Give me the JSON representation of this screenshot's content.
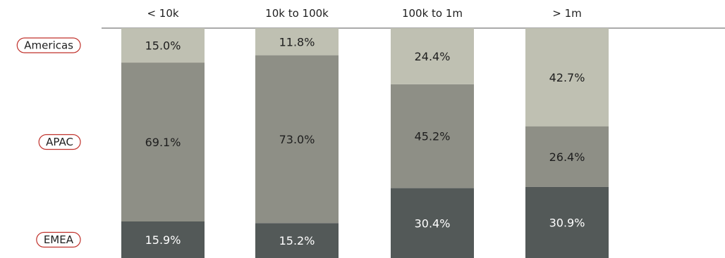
{
  "chart_data": {
    "type": "bar",
    "stacked": true,
    "percent": true,
    "categories": [
      "< 10k",
      "10k to 100k",
      "100k to 1m",
      "> 1m"
    ],
    "series": [
      {
        "name": "EMEA",
        "values": [
          15.9,
          15.2,
          30.4,
          30.9
        ],
        "labels": [
          "15.9%",
          "15.2%",
          "30.4%",
          "30.9%"
        ],
        "color": "#535958",
        "label_color": "#ffffff"
      },
      {
        "name": "APAC",
        "values": [
          69.1,
          73.0,
          45.2,
          26.4
        ],
        "labels": [
          "69.1%",
          "73.0%",
          "45.2%",
          "26.4%"
        ],
        "color": "#8e8f86",
        "label_color": "#1e1e1e"
      },
      {
        "name": "Americas",
        "values": [
          15.0,
          11.8,
          24.4,
          42.7
        ],
        "labels": [
          "15.0%",
          "11.8%",
          "24.4%",
          "42.7%"
        ],
        "color": "#bfc0b2",
        "label_color": "#1e1e1e"
      }
    ],
    "legend_placement": "left",
    "legend_border_color": "#c0312b",
    "axis_line_color": "#555555",
    "ylim": [
      0,
      100
    ],
    "grid": false
  }
}
